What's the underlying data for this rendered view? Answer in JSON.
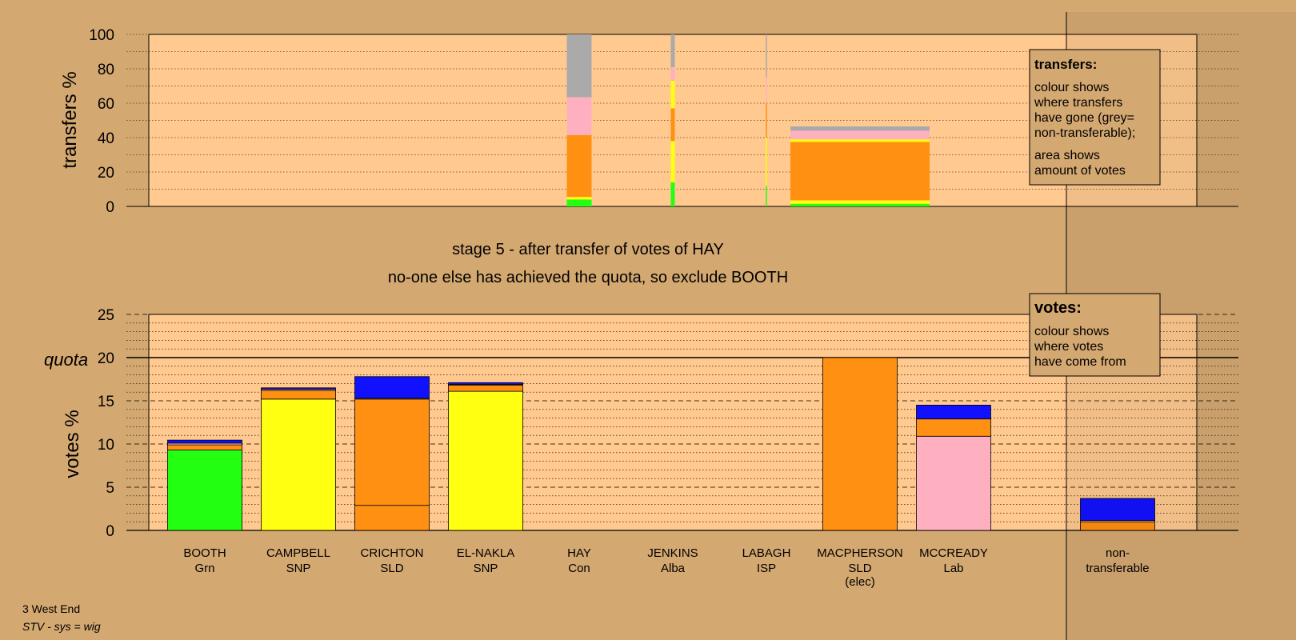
{
  "stage_title": "stage 5 - after transfer of votes of HAY",
  "stage_subtitle": "no-one else has achieved the quota, so exclude BOOTH",
  "footer": {
    "ward": "3 West End",
    "system": "STV - sys = wig"
  },
  "legend_transfers": {
    "title": "transfers:",
    "lines": [
      "colour shows",
      "where transfers",
      "have gone (grey=",
      "non-transferable);"
    ],
    "lines2": [
      "area shows",
      "amount of votes"
    ]
  },
  "legend_votes": {
    "title": "votes:",
    "lines": [
      "colour shows",
      "where votes",
      "have come from"
    ]
  },
  "colors": {
    "Grn": "#22FF11",
    "SNP": "#FFFF11",
    "SLD": "#FF9011",
    "Con": "#1111FF",
    "Lab": "#FFB0C0",
    "Alba": "#1111FF",
    "ISP": "#FF9011",
    "nontransferable": "#AAAAAA",
    "page_bg": "#D4A871",
    "plot_bg": "#FFC98F"
  },
  "chart_data": [
    {
      "type": "bar",
      "title": "",
      "ylabel": "transfers %",
      "ylim": [
        0,
        100
      ],
      "yticks": [
        0,
        20,
        40,
        60,
        80,
        100
      ],
      "grid": true,
      "bars": [
        {
          "candidate": "HAY",
          "segments": [
            {
              "color": "Grn",
              "value": 4
            },
            {
              "color": "SNP",
              "value": 1.5
            },
            {
              "color": "SLD",
              "value": 36
            },
            {
              "color": "Lab",
              "value": 22
            },
            {
              "color": "nontransferable",
              "value": 36.5
            }
          ]
        },
        {
          "candidate": "JENKINS",
          "segments": [
            {
              "color": "Grn",
              "value": 14
            },
            {
              "color": "SNP",
              "value": 24
            },
            {
              "color": "SLD",
              "value": 19
            },
            {
              "color": "SNP",
              "value": 16
            },
            {
              "color": "Lab",
              "value": 8
            },
            {
              "color": "nontransferable",
              "value": 19
            }
          ]
        },
        {
          "candidate": "LABAGH",
          "segments": [
            {
              "color": "Grn",
              "value": 12
            },
            {
              "color": "SNP",
              "value": 28
            },
            {
              "color": "SLD",
              "value": 20
            },
            {
              "color": "Lab",
              "value": 15
            },
            {
              "color": "nontransferable",
              "value": 25
            }
          ]
        },
        {
          "candidate": "MACPHERSON",
          "segments": [
            {
              "color": "Grn",
              "value": 1.5
            },
            {
              "color": "SNP",
              "value": 2
            },
            {
              "color": "SLD",
              "value": 34
            },
            {
              "color": "SNP",
              "value": 1.5
            },
            {
              "color": "Lab",
              "value": 5
            },
            {
              "color": "nontransferable",
              "value": 2.5
            }
          ]
        }
      ]
    },
    {
      "type": "bar",
      "title": "",
      "ylabel": "votes %",
      "ylim": [
        0,
        25
      ],
      "yticks": [
        0,
        5,
        10,
        15,
        20,
        25
      ],
      "quota": 20,
      "quota_label": "quota",
      "grid": true,
      "categories": [
        {
          "name": "BOOTH",
          "party": "Grn",
          "extra": "",
          "segments": [
            {
              "color": "Grn",
              "value": 9.3
            },
            {
              "color": "SLD",
              "value": 0.6
            },
            {
              "color": "Lab",
              "value": 0.2
            },
            {
              "color": "Con",
              "value": 0.35
            }
          ]
        },
        {
          "name": "CAMPBELL",
          "party": "SNP",
          "extra": "",
          "segments": [
            {
              "color": "SNP",
              "value": 15.2
            },
            {
              "color": "SLD",
              "value": 1.0
            },
            {
              "color": "Lab",
              "value": 0.15
            },
            {
              "color": "Con",
              "value": 0.15
            }
          ]
        },
        {
          "name": "CRICHTON",
          "party": "SLD",
          "extra": "",
          "segments": [
            {
              "color": "SLD",
              "value": 2.9
            },
            {
              "color": "SLD",
              "value": 12.3
            },
            {
              "color": "Lab",
              "value": 0.1
            },
            {
              "color": "Con",
              "value": 2.5
            }
          ]
        },
        {
          "name": "EL-NAKLA",
          "party": "SNP",
          "extra": "",
          "segments": [
            {
              "color": "SNP",
              "value": 16.1
            },
            {
              "color": "SLD",
              "value": 0.7
            },
            {
              "color": "Lab",
              "value": 0.1
            },
            {
              "color": "Con",
              "value": 0.2
            }
          ]
        },
        {
          "name": "HAY",
          "party": "Con",
          "extra": "",
          "segments": []
        },
        {
          "name": "JENKINS",
          "party": "Alba",
          "extra": "",
          "segments": []
        },
        {
          "name": "LABAGH",
          "party": "ISP",
          "extra": "",
          "segments": []
        },
        {
          "name": "MACPHERSON",
          "party": "SLD",
          "extra": "(elec)",
          "segments": [
            {
              "color": "SLD",
              "value": 20
            }
          ]
        },
        {
          "name": "MCCREADY",
          "party": "Lab",
          "extra": "",
          "segments": [
            {
              "color": "Lab",
              "value": 10.9
            },
            {
              "color": "SLD",
              "value": 2.0
            },
            {
              "color": "Con",
              "value": 1.6
            }
          ]
        },
        {
          "name": "non-",
          "party": "transferable",
          "extra": "",
          "segments": [
            {
              "color": "SLD",
              "value": 1.0
            },
            {
              "color": "Lab",
              "value": 0.15
            },
            {
              "color": "Con",
              "value": 2.55
            }
          ]
        }
      ]
    }
  ]
}
